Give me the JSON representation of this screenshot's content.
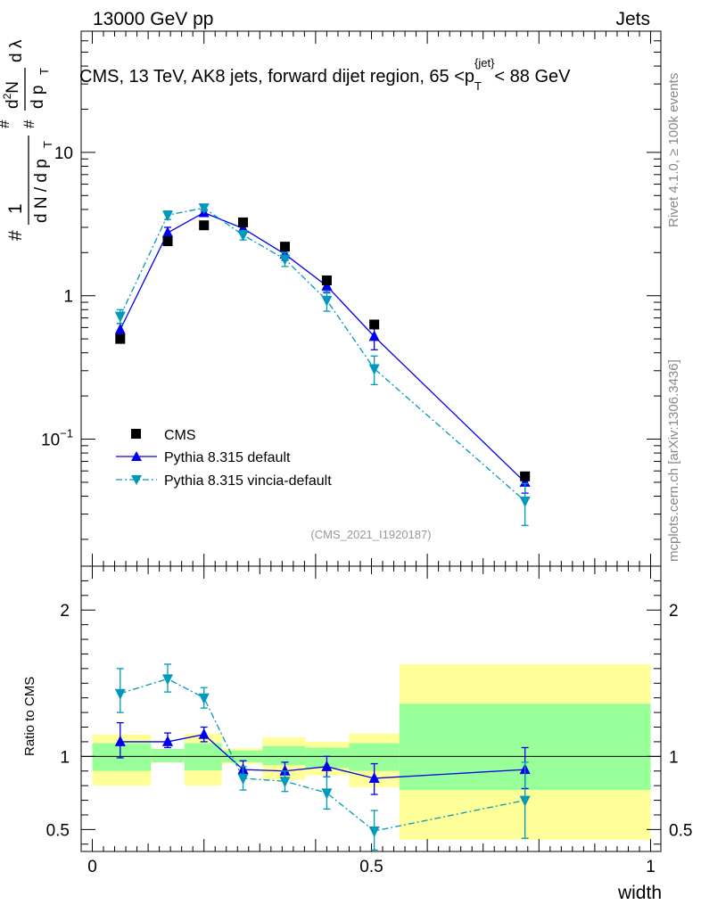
{
  "header": {
    "left": "13000 GeV pp",
    "right": "Jets"
  },
  "side_labels": {
    "rivet": "Rivet 4.1.0, ≥ 100k events",
    "mcplots": "mcplots.cern.ch [arXiv:1306.3436]"
  },
  "colors": {
    "cms": "#000000",
    "default": "#0000ee",
    "vincia": "#0099bb",
    "green": "#99ff99",
    "yellow": "#ffff99"
  },
  "chart_data": [
    {
      "type": "scatter",
      "title": "CMS, 13 TeV, AK8 jets, forward dijet region, 65 <p_T^{jet}< 88 GeV",
      "title_parts": {
        "pre": "CMS, 13 TeV, AK8 jets, forward dijet region, 65 <p",
        "sub": "T",
        "sup": "{jet}",
        "post": "< 88 GeV"
      },
      "ylabel": "1/dN/dp_T  d²N/dp_T dλ",
      "ylabel_parts": {
        "one": "1",
        "hash": "#",
        "dN": "d N / d p",
        "sub": "T",
        "d2N": "d",
        "d2Nsup": "2",
        "d2Nrest": "N",
        "dp": "d p",
        "dl": "d λ"
      },
      "yscale": "log",
      "ylim": [
        0.013,
        70
      ],
      "xlim": [
        -0.02,
        1.0
      ],
      "yticks": [
        {
          "value": 0.1,
          "label": "10",
          "sup": "−1"
        },
        {
          "value": 1,
          "label": "1",
          "sup": ""
        },
        {
          "value": 10,
          "label": "10",
          "sup": ""
        }
      ],
      "watermark": "(CMS_2021_I1920187)",
      "legend": {
        "position": "bottom-left",
        "entries": [
          "CMS",
          "Pythia 8.315 default",
          "Pythia 8.315 vincia-default"
        ]
      },
      "series": [
        {
          "name": "CMS",
          "marker": "square",
          "x": [
            0.05,
            0.135,
            0.2,
            0.27,
            0.345,
            0.42,
            0.505,
            0.775
          ],
          "y": [
            0.5,
            2.4,
            3.1,
            3.25,
            2.2,
            1.28,
            0.63,
            0.055
          ]
        },
        {
          "name": "Pythia 8.315 default",
          "marker": "triangle-up",
          "line": "solid",
          "x": [
            0.05,
            0.135,
            0.2,
            0.27,
            0.345,
            0.42,
            0.505,
            0.775
          ],
          "y": [
            0.58,
            2.75,
            3.8,
            2.95,
            1.95,
            1.17,
            0.52,
            0.05
          ],
          "err": [
            0.06,
            0.25,
            0.2,
            0.18,
            0.18,
            0.12,
            0.1,
            0.008
          ]
        },
        {
          "name": "Pythia 8.315 vincia-default",
          "marker": "triangle-down",
          "line": "dashdot",
          "x": [
            0.05,
            0.135,
            0.2,
            0.27,
            0.345,
            0.42,
            0.505,
            0.775
          ],
          "y": [
            0.72,
            3.65,
            4.1,
            2.65,
            1.8,
            0.93,
            0.31,
            0.037
          ],
          "err": [
            0.08,
            0.25,
            0.2,
            0.2,
            0.2,
            0.15,
            0.07,
            0.012
          ]
        }
      ]
    },
    {
      "type": "scatter",
      "ylabel": "Ratio to CMS",
      "xlabel": "width",
      "ylim": [
        0.35,
        2.3
      ],
      "xlim": [
        -0.02,
        1.0
      ],
      "yticks": [
        0.5,
        1,
        2
      ],
      "ytick_labels": [
        "0.5",
        "1",
        "2"
      ],
      "xticks": [
        0,
        0.5,
        1
      ],
      "xtick_labels": [
        "0",
        "0.5",
        "1"
      ],
      "bands": [
        {
          "x0": 0.0,
          "x1": 0.105,
          "stat_lo": 0.9,
          "stat_hi": 1.09,
          "sys_lo": 0.8,
          "sys_hi": 1.15
        },
        {
          "x0": 0.105,
          "x1": 0.165,
          "stat_lo": 0.96,
          "stat_hi": 1.05,
          "sys_lo": 0.96,
          "sys_hi": 1.05
        },
        {
          "x0": 0.165,
          "x1": 0.232,
          "stat_lo": 0.905,
          "stat_hi": 1.09,
          "sys_lo": 0.8,
          "sys_hi": 1.155
        },
        {
          "x0": 0.232,
          "x1": 0.305,
          "stat_lo": 0.96,
          "stat_hi": 1.04,
          "sys_lo": 0.95,
          "sys_hi": 1.055
        },
        {
          "x0": 0.305,
          "x1": 0.382,
          "stat_lo": 0.94,
          "stat_hi": 1.07,
          "sys_lo": 0.84,
          "sys_hi": 1.13
        },
        {
          "x0": 0.382,
          "x1": 0.46,
          "stat_lo": 0.92,
          "stat_hi": 1.06,
          "sys_lo": 0.87,
          "sys_hi": 1.1
        },
        {
          "x0": 0.46,
          "x1": 0.55,
          "stat_lo": 0.9,
          "stat_hi": 1.09,
          "sys_lo": 0.79,
          "sys_hi": 1.155
        },
        {
          "x0": 0.55,
          "x1": 1.0,
          "stat_lo": 0.77,
          "stat_hi": 1.36,
          "sys_lo": 0.43,
          "sys_hi": 1.63
        }
      ],
      "series": [
        {
          "name": "Pythia 8.315 default",
          "marker": "triangle-up",
          "line": "solid",
          "x": [
            0.05,
            0.135,
            0.2,
            0.27,
            0.345,
            0.42,
            0.505,
            0.775
          ],
          "y": [
            1.1,
            1.1,
            1.15,
            0.91,
            0.9,
            0.93,
            0.85,
            0.91
          ],
          "lo": [
            0.99,
            1.06,
            1.1,
            0.86,
            0.85,
            0.86,
            0.74,
            0.78
          ],
          "hi": [
            1.23,
            1.16,
            1.2,
            0.97,
            0.96,
            1.0,
            0.95,
            1.06
          ]
        },
        {
          "name": "Pythia 8.315 vincia-default",
          "marker": "triangle-down",
          "line": "dashdot",
          "x": [
            0.05,
            0.135,
            0.2,
            0.27,
            0.345,
            0.42,
            0.505,
            0.775
          ],
          "y": [
            1.43,
            1.53,
            1.4,
            0.85,
            0.83,
            0.75,
            0.49,
            0.7
          ],
          "lo": [
            1.3,
            1.44,
            1.33,
            0.77,
            0.76,
            0.64,
            0.36,
            0.44
          ],
          "hi": [
            1.6,
            1.63,
            1.47,
            0.93,
            0.9,
            0.86,
            0.63,
            0.96
          ]
        }
      ]
    }
  ]
}
